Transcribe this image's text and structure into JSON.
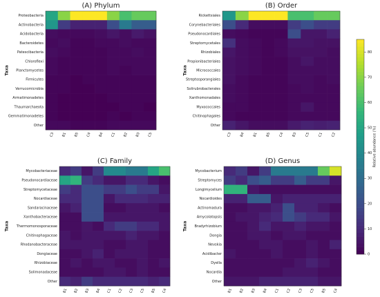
{
  "chart_data": [
    {
      "type": "heatmap",
      "title": "(A) Phylum",
      "ylabel": "Taxa",
      "rows": [
        "Proteobacteria",
        "Actinobacteria",
        "Acidobacteria",
        "Bacteroidetes",
        "Patescibacteria",
        "Chloroflexi",
        "Planctomycetes",
        "Firmicutes",
        "Verrucomicrobia",
        "Armatimonadetes",
        "Thaumarchaeota",
        "Gemmatimonadetes",
        "Other"
      ],
      "columns": [
        "C3",
        "B1",
        "B5",
        "C4",
        "B4",
        "C1",
        "B2",
        "B3",
        "C5"
      ],
      "values": [
        [
          50,
          70,
          85,
          85,
          85,
          70,
          60,
          65,
          65
        ],
        [
          45,
          15,
          8,
          8,
          8,
          20,
          35,
          25,
          25
        ],
        [
          3,
          2,
          2,
          2,
          3,
          5,
          3,
          6,
          4
        ],
        [
          2,
          3,
          1,
          1,
          2,
          2,
          3,
          2,
          2
        ],
        [
          3,
          2,
          1,
          1,
          1,
          2,
          2,
          3,
          2
        ],
        [
          2,
          1,
          1,
          1,
          1,
          2,
          2,
          2,
          2
        ],
        [
          2,
          1,
          1,
          1,
          1,
          2,
          1,
          2,
          2
        ],
        [
          1,
          1,
          0,
          1,
          1,
          1,
          1,
          1,
          1
        ],
        [
          1,
          1,
          0,
          0,
          1,
          1,
          1,
          1,
          1
        ],
        [
          1,
          0,
          0,
          0,
          0,
          1,
          1,
          1,
          1
        ],
        [
          1,
          0,
          0,
          0,
          0,
          0,
          1,
          1,
          0
        ],
        [
          1,
          0,
          0,
          0,
          0,
          1,
          0,
          1,
          1
        ],
        [
          2,
          2,
          1,
          1,
          1,
          2,
          2,
          2,
          2
        ]
      ]
    },
    {
      "type": "heatmap",
      "title": "(B) Order",
      "ylabel": "Taxa",
      "rows": [
        "Rickettsiales",
        "Corynebacteriales",
        "Pseudonocardiales",
        "Streptomycetales",
        "Rhizobiales",
        "Propionibacteriales",
        "Micrococcales",
        "Streptosporangiales",
        "Solirubrobacterales",
        "Xanthomonadales",
        "Myxococcales",
        "Chitinophagales",
        "Other"
      ],
      "columns": [
        "C3",
        "B4",
        "B1",
        "B5",
        "C4",
        "B3",
        "C5",
        "C1",
        "C2"
      ],
      "values": [
        [
          45,
          70,
          85,
          85,
          85,
          60,
          60,
          65,
          65
        ],
        [
          20,
          10,
          3,
          3,
          3,
          15,
          20,
          15,
          15
        ],
        [
          3,
          2,
          1,
          1,
          1,
          20,
          5,
          5,
          8
        ],
        [
          12,
          3,
          2,
          1,
          2,
          5,
          5,
          4,
          4
        ],
        [
          5,
          3,
          2,
          1,
          2,
          4,
          4,
          4,
          3
        ],
        [
          4,
          3,
          2,
          1,
          1,
          3,
          5,
          3,
          3
        ],
        [
          4,
          3,
          2,
          1,
          1,
          3,
          3,
          3,
          3
        ],
        [
          4,
          2,
          1,
          1,
          1,
          3,
          3,
          2,
          3
        ],
        [
          3,
          2,
          1,
          1,
          1,
          2,
          3,
          2,
          2
        ],
        [
          3,
          2,
          1,
          1,
          1,
          2,
          2,
          2,
          2
        ],
        [
          2,
          2,
          1,
          1,
          1,
          2,
          5,
          2,
          2
        ],
        [
          2,
          1,
          1,
          1,
          1,
          2,
          2,
          2,
          2
        ],
        [
          8,
          5,
          3,
          3,
          3,
          6,
          8,
          7,
          8
        ]
      ]
    },
    {
      "type": "heatmap",
      "title": "(C) Family",
      "ylabel": "Taxa",
      "rows": [
        "Mycobacteriaceae",
        "Pseudonocardiaceae",
        "Streptomycetaceae",
        "Nocardiaceae",
        "Sandaracinaceae",
        "Xanthobacteraceae",
        "Thermomonosporaceae",
        "Chitinophagaceae",
        "Rhodanobacteraceae",
        "Dongiaceae",
        "Rhizobiaceae",
        "Solimonadaceae",
        "Other"
      ],
      "columns": [
        "B1",
        "B2",
        "B3",
        "B4",
        "C1",
        "C2",
        "C3",
        "C5",
        "B5",
        "C4"
      ],
      "values": [
        [
          10,
          15,
          5,
          15,
          40,
          40,
          35,
          35,
          50,
          60
        ],
        [
          50,
          55,
          15,
          10,
          5,
          5,
          10,
          10,
          5,
          3
        ],
        [
          15,
          10,
          20,
          20,
          15,
          15,
          20,
          15,
          15,
          5
        ],
        [
          10,
          10,
          20,
          20,
          5,
          10,
          10,
          10,
          8,
          8
        ],
        [
          5,
          8,
          20,
          20,
          3,
          3,
          5,
          5,
          5,
          3
        ],
        [
          3,
          3,
          20,
          20,
          5,
          5,
          5,
          5,
          5,
          5
        ],
        [
          3,
          3,
          5,
          3,
          10,
          15,
          15,
          10,
          10,
          5
        ],
        [
          5,
          3,
          5,
          5,
          5,
          5,
          8,
          5,
          5,
          3
        ],
        [
          5,
          5,
          5,
          5,
          3,
          3,
          5,
          5,
          3,
          3
        ],
        [
          3,
          3,
          5,
          8,
          3,
          5,
          5,
          5,
          3,
          3
        ],
        [
          3,
          5,
          3,
          5,
          5,
          3,
          3,
          5,
          3,
          5
        ],
        [
          3,
          3,
          3,
          3,
          5,
          5,
          3,
          5,
          3,
          3
        ],
        [
          10,
          8,
          15,
          10,
          10,
          10,
          10,
          10,
          8,
          10
        ]
      ]
    },
    {
      "type": "heatmap",
      "title": "(D) Genus",
      "ylabel": "Taxa",
      "rows": [
        "Mycobacterium",
        "Streptomyces",
        "Longimycelium",
        "Nocardioides",
        "Actinomadura",
        "Amycolatopsis",
        "Bradyrhizobium",
        "Dongia",
        "Nevskia",
        "Acidibacter",
        "Dyella",
        "Nocardia",
        "Other"
      ],
      "columns": [
        "B1",
        "B2",
        "B3",
        "B4",
        "C1",
        "C2",
        "C3",
        "C5",
        "B5",
        "C4"
      ],
      "values": [
        [
          10,
          15,
          5,
          15,
          35,
          35,
          35,
          35,
          65,
          80
        ],
        [
          15,
          10,
          20,
          25,
          15,
          15,
          25,
          15,
          15,
          5
        ],
        [
          55,
          55,
          5,
          3,
          3,
          3,
          3,
          3,
          3,
          3
        ],
        [
          8,
          8,
          25,
          25,
          5,
          8,
          8,
          8,
          8,
          8
        ],
        [
          3,
          3,
          5,
          5,
          8,
          20,
          8,
          8,
          5,
          3
        ],
        [
          3,
          5,
          5,
          8,
          10,
          20,
          15,
          10,
          10,
          5
        ],
        [
          3,
          3,
          5,
          10,
          5,
          5,
          8,
          5,
          5,
          3
        ],
        [
          3,
          3,
          5,
          5,
          3,
          5,
          5,
          3,
          3,
          3
        ],
        [
          3,
          3,
          3,
          5,
          5,
          3,
          3,
          5,
          3,
          8
        ],
        [
          5,
          3,
          3,
          3,
          5,
          3,
          3,
          5,
          3,
          3
        ],
        [
          3,
          3,
          3,
          3,
          3,
          3,
          5,
          8,
          5,
          3
        ],
        [
          3,
          3,
          3,
          3,
          3,
          5,
          5,
          5,
          3,
          3
        ],
        [
          5,
          5,
          5,
          8,
          8,
          8,
          8,
          8,
          5,
          5
        ]
      ]
    }
  ],
  "colorbar": {
    "label": "Relative abundance (%)",
    "colormap": "viridis",
    "lim": [
      0,
      85
    ],
    "ticks": [
      0,
      10,
      20,
      30,
      40,
      50,
      60,
      70,
      80
    ]
  }
}
